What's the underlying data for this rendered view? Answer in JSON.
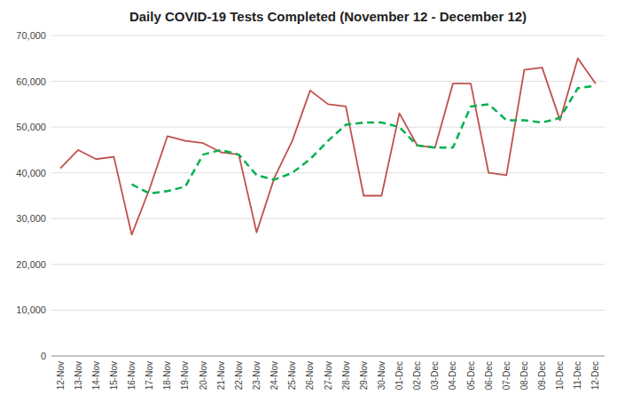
{
  "chart_data": {
    "type": "line",
    "title": "Daily COVID-19 Tests Completed (November 12 - December 12)",
    "categories": [
      "12-Nov",
      "13-Nov",
      "14-Nov",
      "15-Nov",
      "16-Nov",
      "17-Nov",
      "18-Nov",
      "19-Nov",
      "20-Nov",
      "21-Nov",
      "22-Nov",
      "23-Nov",
      "24-Nov",
      "25-Nov",
      "26-Nov",
      "27-Nov",
      "28-Nov",
      "29-Nov",
      "30-Nov",
      "01-Dec",
      "02-Dec",
      "03-Dec",
      "04-Dec",
      "05-Dec",
      "06-Dec",
      "07-Dec",
      "08-Dec",
      "09-Dec",
      "10-Dec",
      "11-Dec",
      "12-Dec"
    ],
    "series": [
      {
        "color": "#c0504d",
        "line_style": "solid",
        "values": [
          41000,
          45000,
          43000,
          43500,
          26500,
          36500,
          48000,
          47000,
          46500,
          44500,
          44000,
          27000,
          39000,
          47000,
          58000,
          55000,
          54500,
          35000,
          35000,
          53000,
          46000,
          45500,
          59500,
          59500,
          40000,
          39500,
          62500,
          63000,
          51500,
          65000,
          59500
        ]
      },
      {
        "color": "#00b050",
        "line_style": "dashed",
        "values": [
          null,
          null,
          null,
          null,
          37500,
          35500,
          36000,
          37000,
          44000,
          45000,
          44000,
          39500,
          38500,
          40000,
          43000,
          47000,
          50500,
          51000,
          51000,
          50000,
          46000,
          45500,
          45500,
          54500,
          55000,
          51500,
          51500,
          51000,
          52000,
          58500,
          59000
        ]
      }
    ],
    "ylim": [
      0,
      70000
    ],
    "yticks": [
      0,
      {
        "value": 10000,
        "label": "10,000"
      },
      {
        "value": 20000,
        "label": "20,000"
      },
      {
        "value": 30000,
        "label": "30,000"
      },
      {
        "value": 40000,
        "label": "40,000"
      },
      {
        "value": 50000,
        "label": "50,000"
      },
      {
        "value": 60000,
        "label": "60,000"
      },
      {
        "value": 70000,
        "label": "70,000"
      }
    ],
    "grid": true
  }
}
